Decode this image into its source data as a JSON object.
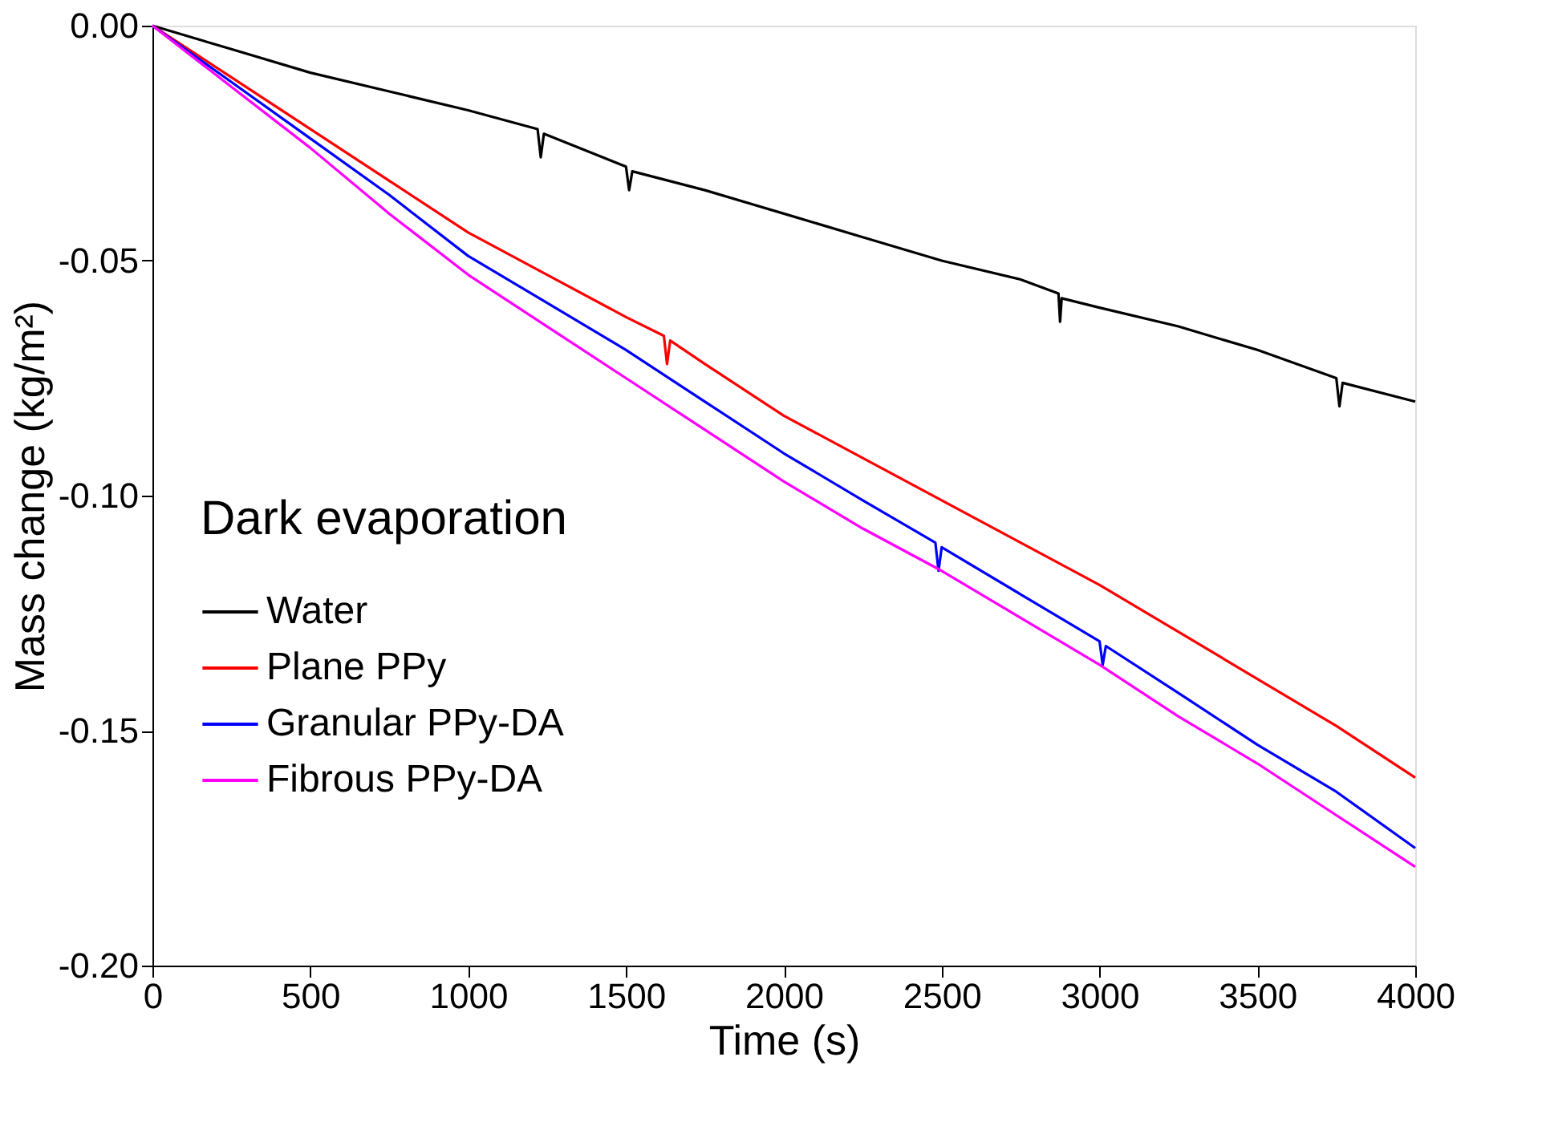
{
  "chart_data": {
    "type": "line",
    "xlabel": "Time (s)",
    "ylabel": "Mass change (kg/m²)",
    "legend_title": "Dark evaporation",
    "legend": "left",
    "grid": false,
    "line_style": "solid",
    "marker": "none",
    "xlim": [
      0,
      4000
    ],
    "xticks": [
      0,
      500,
      1000,
      1500,
      2000,
      2500,
      3000,
      3500,
      4000
    ],
    "ylim": [
      -0.2,
      0
    ],
    "yticks": [
      {
        "value": -0.2,
        "label": "-0.20"
      },
      {
        "value": -0.15,
        "label": "-0.15"
      },
      {
        "value": -0.1,
        "label": "-0.10"
      },
      {
        "value": -0.05,
        "label": "-0.05"
      },
      {
        "value": 0,
        "label": "0.00"
      }
    ],
    "series": [
      {
        "name": "Water",
        "color": "#000000",
        "x": [
          0,
          250,
          500,
          750,
          1000,
          1220,
          1230,
          1240,
          1500,
          1510,
          1520,
          1750,
          2000,
          2250,
          2500,
          2750,
          2870,
          2875,
          2880,
          3000,
          3250,
          3500,
          3750,
          3760,
          3770,
          4000
        ],
        "values": [
          0,
          -0.005,
          -0.01,
          -0.014,
          -0.018,
          -0.022,
          -0.028,
          -0.023,
          -0.03,
          -0.035,
          -0.031,
          -0.035,
          -0.04,
          -0.045,
          -0.05,
          -0.054,
          -0.057,
          -0.063,
          -0.058,
          -0.06,
          -0.064,
          -0.069,
          -0.075,
          -0.081,
          -0.076,
          -0.08
        ]
      },
      {
        "name": "Plane PPy",
        "color": "#ff0000",
        "x": [
          0,
          250,
          500,
          750,
          1000,
          1250,
          1500,
          1620,
          1630,
          1640,
          1750,
          2000,
          2250,
          2500,
          2750,
          3000,
          3250,
          3500,
          3750,
          4000
        ],
        "values": [
          0,
          -0.011,
          -0.022,
          -0.033,
          -0.044,
          -0.053,
          -0.062,
          -0.066,
          -0.072,
          -0.067,
          -0.072,
          -0.083,
          -0.092,
          -0.101,
          -0.11,
          -0.119,
          -0.129,
          -0.139,
          -0.149,
          -0.16
        ]
      },
      {
        "name": "Granular PPy-DA",
        "color": "#0000ff",
        "x": [
          0,
          250,
          500,
          750,
          1000,
          1250,
          1500,
          1750,
          2000,
          2250,
          2480,
          2490,
          2500,
          2750,
          3000,
          3010,
          3020,
          3250,
          3500,
          3750,
          4000
        ],
        "values": [
          0,
          -0.012,
          -0.024,
          -0.036,
          -0.049,
          -0.059,
          -0.069,
          -0.08,
          -0.091,
          -0.101,
          -0.11,
          -0.116,
          -0.111,
          -0.121,
          -0.131,
          -0.136,
          -0.132,
          -0.142,
          -0.153,
          -0.163,
          -0.175
        ]
      },
      {
        "name": "Fibrous PPy-DA",
        "color": "#ff00ff",
        "x": [
          0,
          250,
          500,
          750,
          1000,
          1250,
          1500,
          1750,
          2000,
          2250,
          2500,
          2750,
          3000,
          3250,
          3500,
          3750,
          4000
        ],
        "values": [
          0,
          -0.013,
          -0.026,
          -0.04,
          -0.053,
          -0.064,
          -0.075,
          -0.086,
          -0.097,
          -0.107,
          -0.116,
          -0.126,
          -0.136,
          -0.147,
          -0.157,
          -0.168,
          -0.179
        ]
      }
    ]
  }
}
